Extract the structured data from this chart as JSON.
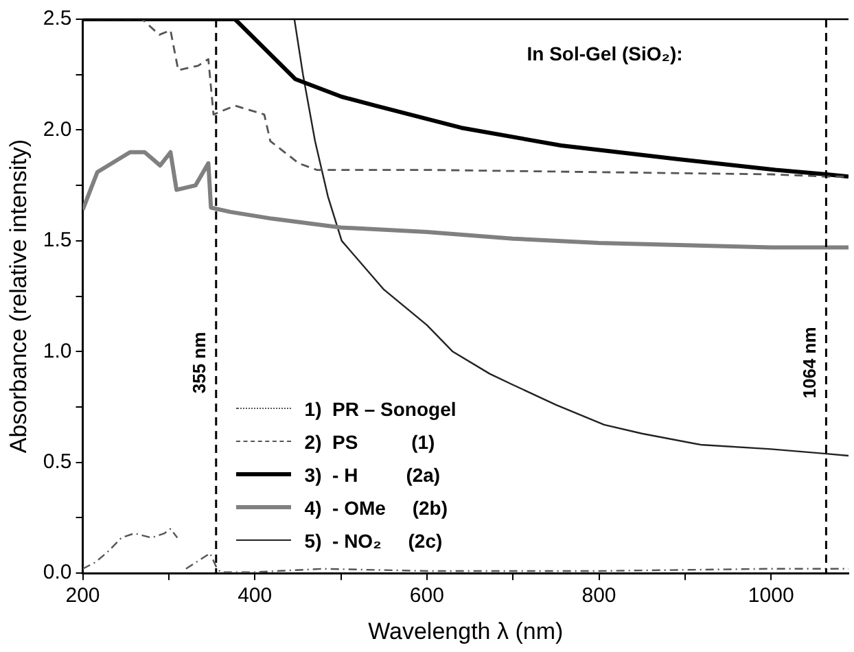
{
  "chart_data": {
    "type": "line",
    "xlabel": "Wavelength λ (nm)",
    "ylabel": "Absorbance (relative intensity)",
    "xlim": [
      200,
      1090
    ],
    "ylim": [
      0,
      2.5
    ],
    "xticks": [
      200,
      {
        "value": 300,
        "label": null
      },
      400,
      {
        "value": 500,
        "label": null
      },
      600,
      {
        "value": 700,
        "label": null
      },
      800,
      {
        "value": 900,
        "label": null
      },
      1000
    ],
    "yticks": [
      {
        "value": 0,
        "label": "0.0"
      },
      {
        "value": 0.25,
        "label": null
      },
      {
        "value": 0.5,
        "label": "0.5"
      },
      {
        "value": 0.75,
        "label": null
      },
      {
        "value": 1,
        "label": "1.0"
      },
      {
        "value": 1.25,
        "label": null
      },
      {
        "value": 1.5,
        "label": "1.5"
      },
      {
        "value": 1.75,
        "label": null
      },
      {
        "value": 2,
        "label": "2.0"
      },
      {
        "value": 2.25,
        "label": null
      },
      {
        "value": 2.5,
        "label": "2.5"
      }
    ],
    "grid": false,
    "legend": "bottom left",
    "marker": "none",
    "annotations": [
      "In Sol-Gel (SiO₂):"
    ],
    "ref_lines": [
      {
        "axis": "x",
        "value": 355,
        "label": "355 nm",
        "line_style": "dashed",
        "color": "#000000"
      },
      {
        "axis": "x",
        "value": 1064,
        "label": "1064 nm",
        "line_style": "dashed",
        "color": "#000000"
      }
    ],
    "series": [
      {
        "name": "1)  PR – Sonogel",
        "color": "#555555",
        "line_style": "dotted",
        "x": [
          200,
          215,
          230,
          245,
          260,
          280,
          295,
          302,
          310,
          315,
          320,
          340,
          348,
          355,
          360,
          400,
          480,
          600,
          800,
          1000,
          1090
        ],
        "values": [
          0.02,
          0.05,
          0.1,
          0.16,
          0.18,
          0.16,
          0.18,
          0.2,
          0.16,
          null,
          0.02,
          0.07,
          0.09,
          0.03,
          0.005,
          0.005,
          0.02,
          0.01,
          0.01,
          0.02,
          0.02
        ]
      },
      {
        "name": "2)  PS          (1)",
        "color": "#555555",
        "line_style": "dashed",
        "x": [
          200,
          269,
          289,
          302,
          311,
          334,
          346,
          352,
          377,
          411,
          418,
          451,
          472,
          600,
          800,
          1000,
          1064,
          1090
        ],
        "values": [
          2.5,
          2.5,
          2.43,
          2.45,
          2.27,
          2.29,
          2.32,
          2.07,
          2.11,
          2.07,
          1.95,
          1.85,
          1.82,
          1.82,
          1.81,
          1.8,
          1.79,
          1.79
        ]
      },
      {
        "name": "3)  - H         (2a)",
        "color": "#000000",
        "line_style": "solid",
        "x": [
          200,
          377,
          447,
          501,
          540,
          640,
          756,
          889,
          1005,
          1064,
          1090
        ],
        "values": [
          2.5,
          2.5,
          2.23,
          2.15,
          2.11,
          2.01,
          1.93,
          1.87,
          1.82,
          1.8,
          1.79
        ]
      },
      {
        "name": "4)  - OMe     (2b)",
        "color": "#808080",
        "line_style": "solid",
        "x": [
          200,
          217,
          255,
          272,
          290,
          302,
          309,
          331,
          346,
          349,
          372,
          420,
          500,
          600,
          700,
          800,
          900,
          1000,
          1090
        ],
        "values": [
          1.64,
          1.81,
          1.9,
          1.9,
          1.84,
          1.9,
          1.73,
          1.75,
          1.85,
          1.65,
          1.63,
          1.6,
          1.56,
          1.54,
          1.51,
          1.49,
          1.48,
          1.47,
          1.47
        ]
      },
      {
        "name": "5)  - NO₂     (2c)",
        "color": "#222222",
        "line_style": "solid",
        "x": [
          446,
          456,
          470,
          485,
          501,
          550,
          600,
          630,
          673,
          700,
          750,
          806,
          850,
          918,
          1000,
          1062,
          1090
        ],
        "values": [
          2.5,
          2.25,
          1.95,
          1.7,
          1.5,
          1.28,
          1.12,
          1.0,
          0.9,
          0.85,
          0.76,
          0.67,
          0.63,
          0.58,
          0.56,
          0.54,
          0.53
        ]
      }
    ]
  }
}
